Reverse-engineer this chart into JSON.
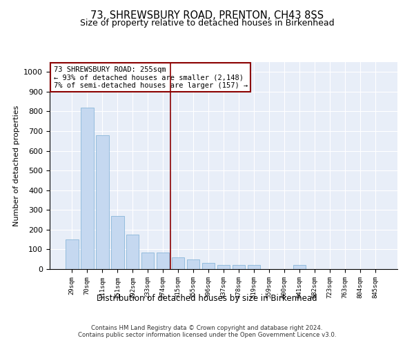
{
  "title": "73, SHREWSBURY ROAD, PRENTON, CH43 8SS",
  "subtitle": "Size of property relative to detached houses in Birkenhead",
  "xlabel": "Distribution of detached houses by size in Birkenhead",
  "ylabel": "Number of detached properties",
  "bar_color": "#c5d8f0",
  "bar_edge_color": "#7aadd4",
  "background_color": "#e8eef8",
  "grid_color": "#ffffff",
  "vline_color": "#8b0000",
  "annotation_text": "73 SHREWSBURY ROAD: 255sqm\n← 93% of detached houses are smaller (2,148)\n7% of semi-detached houses are larger (157) →",
  "categories": [
    "29sqm",
    "70sqm",
    "111sqm",
    "151sqm",
    "192sqm",
    "233sqm",
    "274sqm",
    "315sqm",
    "355sqm",
    "396sqm",
    "437sqm",
    "478sqm",
    "519sqm",
    "559sqm",
    "600sqm",
    "641sqm",
    "682sqm",
    "723sqm",
    "763sqm",
    "804sqm",
    "845sqm"
  ],
  "bar_heights": [
    150,
    820,
    680,
    270,
    175,
    85,
    85,
    60,
    50,
    30,
    20,
    20,
    20,
    0,
    0,
    20,
    0,
    0,
    0,
    0,
    0
  ],
  "ylim": [
    0,
    1050
  ],
  "yticks": [
    0,
    100,
    200,
    300,
    400,
    500,
    600,
    700,
    800,
    900,
    1000
  ],
  "vline_pos": 6.5,
  "footnote": "Contains HM Land Registry data © Crown copyright and database right 2024.\nContains public sector information licensed under the Open Government Licence v3.0."
}
